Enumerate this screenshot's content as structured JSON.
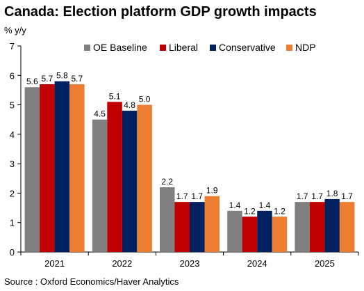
{
  "chart_data": {
    "type": "bar",
    "title": "Canada: Election platform GDP growth impacts",
    "ylabel": "% y/y",
    "xlabel": "",
    "source": "Source : Oxford Economics/Haver Analytics",
    "categories": [
      "2021",
      "2022",
      "2023",
      "2024",
      "2025"
    ],
    "ylim": [
      0,
      7
    ],
    "yticks": [
      0,
      1,
      2,
      3,
      4,
      5,
      6,
      7
    ],
    "grid": false,
    "legend_position": "top",
    "series": [
      {
        "name": "OE Baseline",
        "color": "#808080",
        "values": [
          5.6,
          4.5,
          2.2,
          1.4,
          1.7
        ],
        "labels": [
          "5.6",
          "4.5",
          "2.2",
          "1.4",
          "1.7"
        ]
      },
      {
        "name": "Liberal",
        "color": "#c00000",
        "values": [
          5.7,
          5.1,
          1.7,
          1.2,
          1.7
        ],
        "labels": [
          "5.7",
          "5.1",
          "1.7",
          "1.2",
          "1.7"
        ]
      },
      {
        "name": "Conservative",
        "color": "#002060",
        "values": [
          5.8,
          4.8,
          1.7,
          1.4,
          1.8
        ],
        "labels": [
          "5.8",
          "4.8",
          "1.7",
          "1.4",
          "1.8"
        ]
      },
      {
        "name": "NDP",
        "color": "#ed7d31",
        "values": [
          5.7,
          5.0,
          1.9,
          1.2,
          1.7
        ],
        "labels": [
          "5.7",
          "5.0",
          "1.9",
          "1.2",
          "1.7"
        ]
      }
    ]
  }
}
